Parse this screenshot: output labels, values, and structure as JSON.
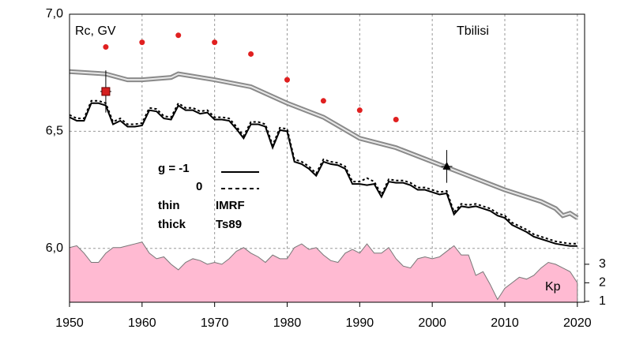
{
  "chart_data": {
    "type": "line",
    "title": "Tbilisi",
    "ylabel": "Rc, GV",
    "y2label": "Kp",
    "legend": {
      "g_label": "g  = -1",
      "g0_label": "0",
      "thin": "thin",
      "thin_model": "IMRF",
      "thick": "thick",
      "thick_model": "Ts89"
    },
    "xlim": [
      1950,
      2021
    ],
    "xticks": [
      1950,
      1960,
      1970,
      1980,
      1990,
      2000,
      2010,
      2020
    ],
    "ylim": [
      5.77,
      7.0
    ],
    "yticks": [
      {
        "value": 6.0,
        "label": "6,0"
      },
      {
        "value": 6.5,
        "label": "6,5"
      },
      {
        "value": 7.0,
        "label": "7,0"
      }
    ],
    "y2lim": [
      0.95,
      16.5
    ],
    "y2ticks": [
      1,
      2,
      3
    ],
    "grid": true,
    "x": [
      1950,
      1951,
      1952,
      1953,
      1954,
      1955,
      1956,
      1957,
      1958,
      1959,
      1960,
      1961,
      1962,
      1963,
      1964,
      1965,
      1966,
      1967,
      1968,
      1969,
      1970,
      1971,
      1972,
      1973,
      1974,
      1975,
      1976,
      1977,
      1978,
      1979,
      1980,
      1981,
      1982,
      1983,
      1984,
      1985,
      1986,
      1987,
      1988,
      1989,
      1990,
      1991,
      1992,
      1993,
      1994,
      1995,
      1996,
      1997,
      1998,
      1999,
      2000,
      2001,
      2002,
      2003,
      2004,
      2005,
      2006,
      2007,
      2008,
      2009,
      2010,
      2011,
      2012,
      2013,
      2014,
      2015,
      2016,
      2017,
      2018,
      2019,
      2020
    ],
    "series": [
      {
        "style": "area",
        "axis": "y2",
        "color": "#ffbad2",
        "values": [
          3.9,
          4.0,
          3.6,
          3.1,
          3.1,
          3.6,
          3.9,
          3.9,
          4.0,
          4.1,
          4.2,
          3.6,
          3.3,
          3.4,
          3.0,
          2.7,
          3.1,
          3.3,
          3.2,
          3.0,
          3.1,
          3.0,
          3.3,
          3.7,
          3.9,
          3.6,
          3.4,
          3.1,
          3.5,
          3.3,
          3.3,
          3.9,
          4.1,
          3.8,
          3.9,
          3.5,
          3.2,
          3.1,
          3.6,
          3.8,
          3.6,
          4.1,
          3.6,
          3.6,
          3.9,
          3.3,
          2.9,
          2.8,
          3.3,
          3.4,
          3.3,
          3.4,
          3.7,
          4.0,
          3.5,
          3.5,
          2.4,
          2.6,
          1.9,
          1.1,
          1.7,
          2.0,
          2.3,
          2.2,
          2.4,
          2.8,
          3.1,
          3.0,
          2.8,
          2.6,
          2.0
        ]
      },
      {
        "style": "solid",
        "color": "#000000",
        "values": [
          6.56,
          6.545,
          6.545,
          6.62,
          6.62,
          6.61,
          6.53,
          6.545,
          6.52,
          6.52,
          6.525,
          6.59,
          6.585,
          6.555,
          6.55,
          6.61,
          6.59,
          6.59,
          6.575,
          6.58,
          6.55,
          6.55,
          6.545,
          6.51,
          6.47,
          6.53,
          6.53,
          6.52,
          6.43,
          6.505,
          6.5,
          6.37,
          6.36,
          6.34,
          6.31,
          6.37,
          6.36,
          6.355,
          6.34,
          6.275,
          6.275,
          6.27,
          6.275,
          6.22,
          6.285,
          6.28,
          6.28,
          6.27,
          6.25,
          6.25,
          6.24,
          6.23,
          6.235,
          6.145,
          6.18,
          6.175,
          6.18,
          6.17,
          6.16,
          6.14,
          6.13,
          6.1,
          6.085,
          6.07,
          6.05,
          6.04,
          6.03,
          6.02,
          6.015,
          6.01,
          6.01
        ]
      },
      {
        "style": "dotted",
        "color": "#000000",
        "values": [
          6.57,
          6.555,
          6.555,
          6.63,
          6.63,
          6.62,
          6.54,
          6.555,
          6.53,
          6.53,
          6.535,
          6.6,
          6.595,
          6.565,
          6.56,
          6.62,
          6.6,
          6.6,
          6.585,
          6.59,
          6.56,
          6.56,
          6.555,
          6.52,
          6.48,
          6.54,
          6.54,
          6.53,
          6.44,
          6.515,
          6.51,
          6.38,
          6.37,
          6.35,
          6.32,
          6.38,
          6.37,
          6.365,
          6.35,
          6.285,
          6.285,
          6.3,
          6.285,
          6.23,
          6.295,
          6.29,
          6.29,
          6.28,
          6.26,
          6.26,
          6.25,
          6.24,
          6.245,
          6.155,
          6.19,
          6.185,
          6.19,
          6.18,
          6.17,
          6.15,
          6.14,
          6.11,
          6.095,
          6.08,
          6.06,
          6.05,
          6.04,
          6.03,
          6.025,
          6.02,
          6.02
        ]
      },
      {
        "style": "band",
        "color": "#8a8a8a",
        "x": [
          1950,
          1955,
          1958,
          1960,
          1964,
          1965,
          1970,
          1975,
          1980,
          1985,
          1990,
          1995,
          2000,
          2005,
          2010,
          2015,
          2017,
          2018,
          2019,
          2020
        ],
        "values": [
          6.755,
          6.745,
          6.72,
          6.72,
          6.73,
          6.745,
          6.72,
          6.69,
          6.62,
          6.56,
          6.47,
          6.43,
          6.37,
          6.31,
          6.25,
          6.2,
          6.17,
          6.14,
          6.15,
          6.13
        ]
      },
      {
        "style": "points",
        "color": "#e02020",
        "x": [
          1955,
          1960,
          1965,
          1970,
          1975,
          1980,
          1985,
          1990,
          1995
        ],
        "values": [
          6.86,
          6.88,
          6.91,
          6.88,
          6.83,
          6.72,
          6.63,
          6.59,
          6.55
        ]
      },
      {
        "style": "square",
        "color": "#d42020",
        "x": [
          1955
        ],
        "values": [
          6.67
        ],
        "errors": [
          0.09
        ]
      },
      {
        "style": "triangle",
        "color": "#000000",
        "x": [
          2002
        ],
        "values": [
          6.35
        ],
        "errors": [
          0.07
        ]
      }
    ]
  }
}
